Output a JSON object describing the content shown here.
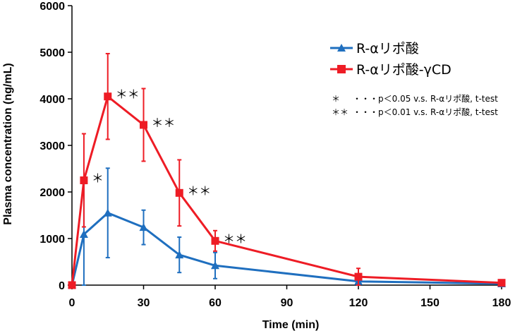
{
  "chart_data": {
    "type": "line",
    "xlabel": "Time (min)",
    "ylabel": "Plasma concentration (ng/mL)",
    "xlim": [
      0,
      180
    ],
    "ylim": [
      0,
      6000
    ],
    "xticks": [
      0,
      30,
      60,
      90,
      120,
      150,
      180
    ],
    "yticks": [
      0,
      1000,
      2000,
      3000,
      4000,
      5000,
      6000
    ],
    "legend_position": "top-right",
    "series": [
      {
        "name": "R-αリポ酸",
        "color": "#1f6fbf",
        "marker": "triangle",
        "x": [
          0,
          5,
          15,
          30,
          45,
          60,
          120,
          180
        ],
        "y": [
          0,
          1090,
          1550,
          1240,
          650,
          420,
          80,
          30
        ],
        "error": [
          0,
          1090,
          960,
          370,
          380,
          280,
          50,
          20
        ]
      },
      {
        "name": "R-αリポ酸-γCD",
        "color": "#ee1c25",
        "marker": "square",
        "x": [
          0,
          5,
          15,
          30,
          45,
          60,
          120,
          180
        ],
        "y": [
          0,
          2250,
          4050,
          3440,
          1980,
          950,
          180,
          50
        ],
        "error": [
          0,
          1000,
          920,
          780,
          710,
          220,
          180,
          30
        ]
      }
    ],
    "significance": [
      {
        "x": 5,
        "y": 2250,
        "label": "＊"
      },
      {
        "x": 15,
        "y": 4050,
        "label": "＊＊"
      },
      {
        "x": 30,
        "y": 3440,
        "label": "＊＊"
      },
      {
        "x": 45,
        "y": 1980,
        "label": "＊＊"
      },
      {
        "x": 60,
        "y": 950,
        "label": "＊＊"
      }
    ],
    "notes": [
      {
        "mark": "＊",
        "text": "・・・p＜0.05  v.s. R-αリポ酸,  t-test"
      },
      {
        "mark": "＊＊",
        "text": "・・・p＜0.01  v.s. R-αリポ酸,  t-test"
      }
    ]
  }
}
